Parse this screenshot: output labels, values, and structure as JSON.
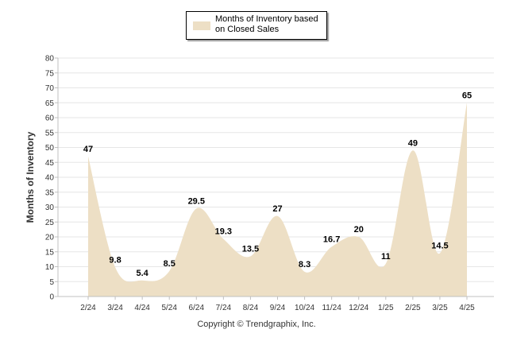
{
  "legend": {
    "label": "Months of Inventory based on Closed Sales",
    "color": "#eddfc5"
  },
  "footer": {
    "copyright": "Copyright © Trendgraphix, Inc."
  },
  "chart_data": {
    "type": "area",
    "title": "",
    "xlabel": "",
    "ylabel": "Months of Inventory",
    "ylim": [
      0,
      80
    ],
    "yticks": [
      0,
      5,
      10,
      15,
      20,
      25,
      30,
      35,
      40,
      45,
      50,
      55,
      60,
      65,
      70,
      75,
      80
    ],
    "grid": true,
    "legend_position": "top-center",
    "categories": [
      "2/24",
      "3/24",
      "4/24",
      "5/24",
      "6/24",
      "7/24",
      "8/24",
      "9/24",
      "10/24",
      "11/24",
      "12/24",
      "1/25",
      "2/25",
      "3/25",
      "4/25"
    ],
    "series": [
      {
        "name": "Months of Inventory based on Closed Sales",
        "values": [
          47,
          9.8,
          5.4,
          8.5,
          29.5,
          19.3,
          13.5,
          27,
          8.3,
          16.7,
          20,
          11,
          49,
          14.5,
          65
        ],
        "labels": [
          "47",
          "9.8",
          "5.4",
          "8.5",
          "29.5",
          "19.3",
          "13.5",
          "27",
          "8.3",
          "16.7",
          "20",
          "11",
          "49",
          "14.5",
          "65"
        ],
        "color": "#eddfc5"
      }
    ]
  }
}
